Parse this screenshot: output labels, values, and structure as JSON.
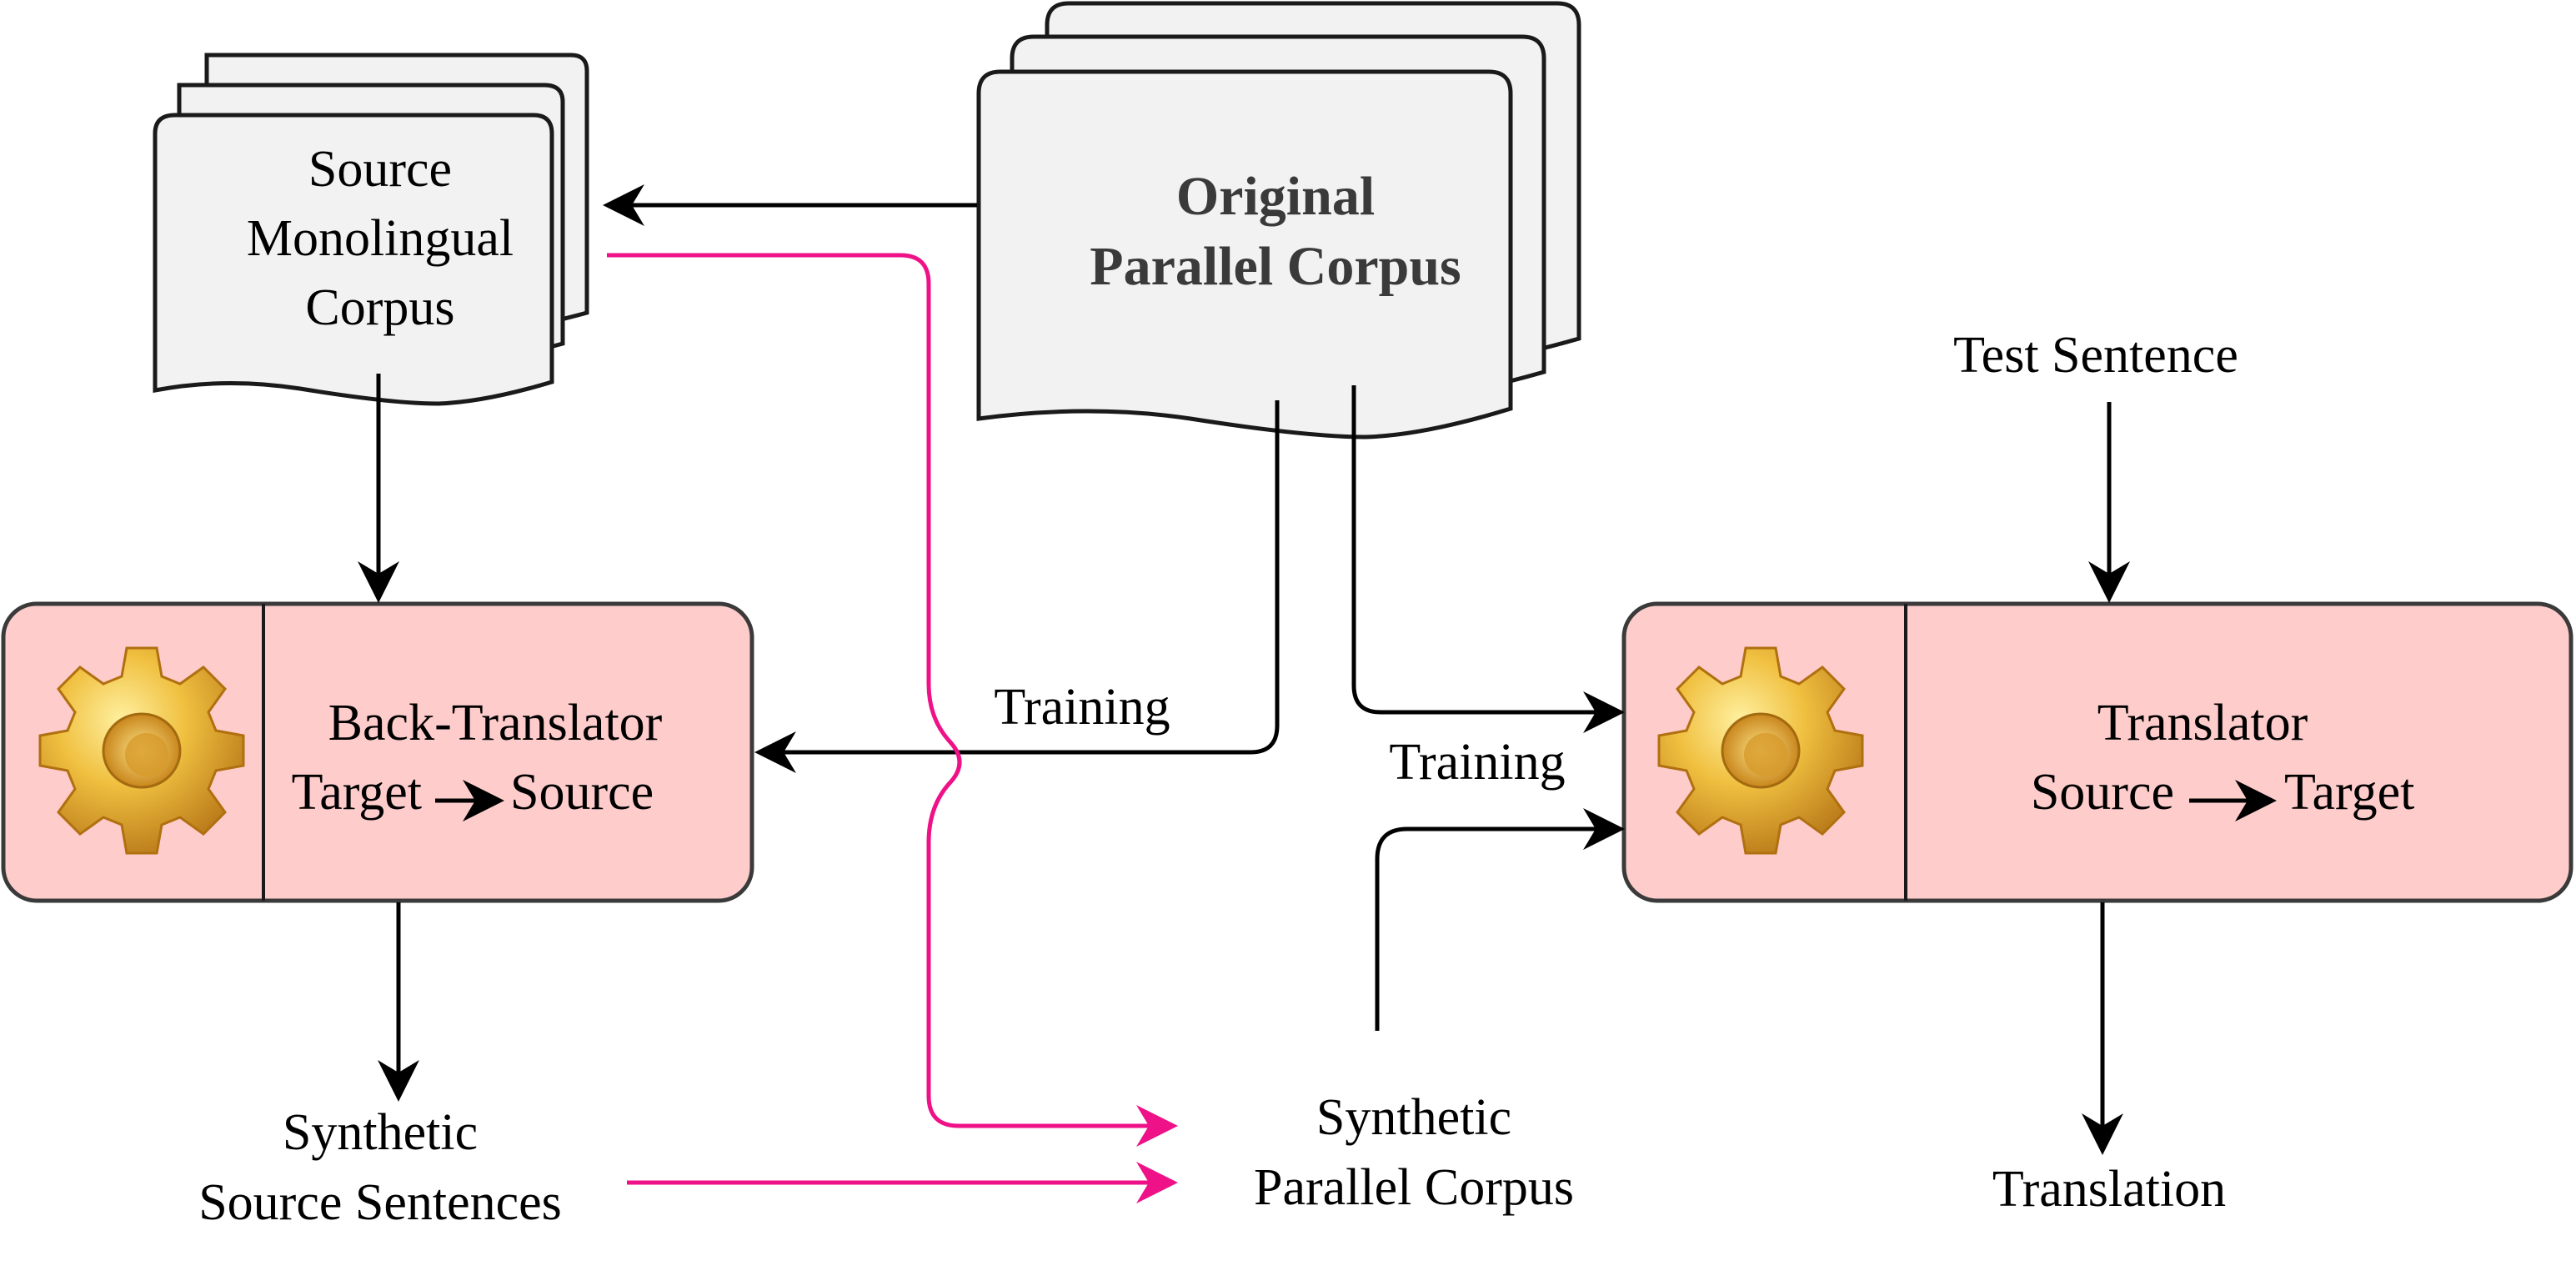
{
  "colors": {
    "document_fill": "#f2f2f2",
    "process_fill": "#ffcccc",
    "arrow_black": "#000000",
    "arrow_pink": "#ee1188",
    "gear_gold": "#e8b640"
  },
  "nodes": {
    "source_mono": {
      "line1": "Source",
      "line2": "Monolingual",
      "line3": "Corpus"
    },
    "original_parallel": {
      "line1": "Original",
      "line2": "Parallel Corpus"
    },
    "back_translator": {
      "title": "Back-Translator",
      "from": "Target",
      "to": "Source",
      "icon": "gear-icon"
    },
    "translator": {
      "title": "Translator",
      "from": "Source",
      "to": "Target",
      "icon": "gear-icon"
    },
    "test_sentence": {
      "label": "Test Sentence"
    },
    "synthetic_source": {
      "line1": "Synthetic",
      "line2": "Source Sentences"
    },
    "synthetic_parallel": {
      "line1": "Synthetic",
      "line2": "Parallel Corpus"
    },
    "translation": {
      "label": "Translation"
    }
  },
  "edge_labels": {
    "training_back": "Training",
    "training_fwd": "Training"
  }
}
